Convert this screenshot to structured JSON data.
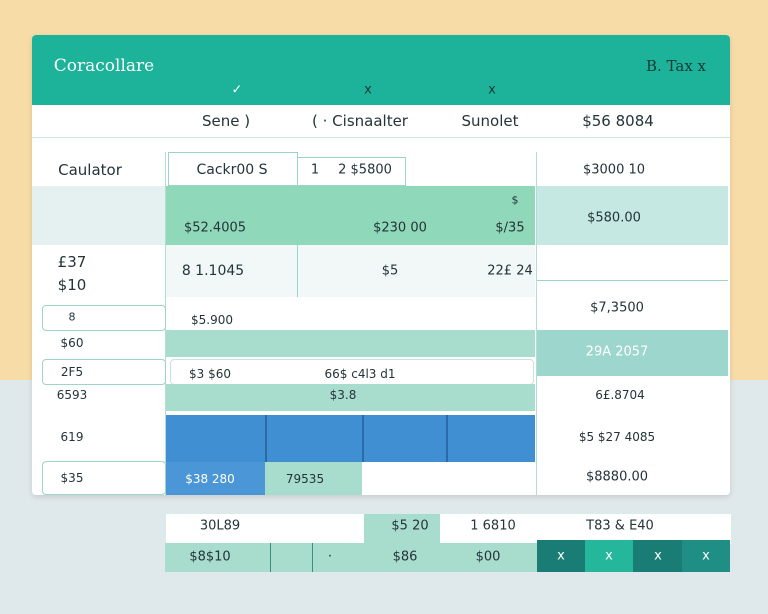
{
  "header": {
    "title": "Coracollare",
    "action": "B. Tax x",
    "marks": [
      "✓",
      "x",
      "x"
    ]
  },
  "tabs": [
    "Sene )",
    "( · Cisnaalter",
    "Sunolet",
    "$56 8084"
  ],
  "sidebar": [
    "Caulator",
    "£37",
    "$10",
    "8",
    "$60",
    "2F5",
    "6593",
    "619",
    "$35"
  ],
  "inputs": [
    "Cackr00 S",
    "1",
    "2 $5800"
  ],
  "grid": [
    "$",
    "$52.4005",
    "$230 00",
    "$/35",
    "8 1.1045",
    "$5",
    "22£ 24",
    "$5.900",
    "$3 $60",
    "66$ c4l3 d1",
    "$3.8",
    "$38 280",
    "79535"
  ],
  "summary": [
    "$3000 10",
    "$580.00",
    "$7,3500",
    "29A 2057",
    "6£.8704",
    "$5 $27 4085",
    "$8880.00"
  ],
  "footer": {
    "row1": [
      "30L89",
      "$5 20",
      "1 6810",
      "T83 & E40"
    ],
    "row2": [
      "$8$10",
      "·",
      "$86",
      "$00"
    ],
    "buttons": [
      "x",
      "x",
      "x",
      "x"
    ]
  }
}
